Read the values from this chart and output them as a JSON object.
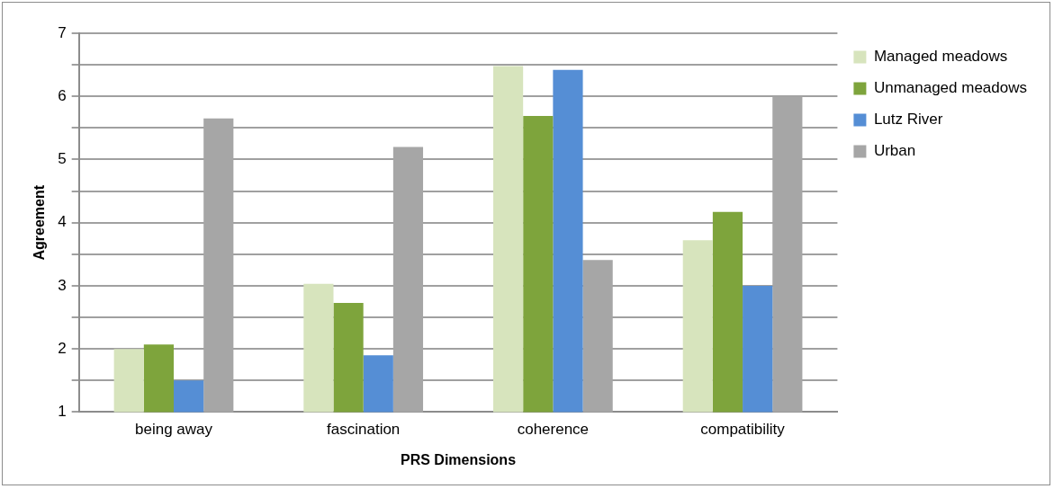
{
  "chart_data": {
    "type": "bar",
    "xlabel": "PRS Dimensions",
    "ylabel": "Agreement",
    "categories": [
      "being away",
      "fascination",
      "coherence",
      "compatibility"
    ],
    "series": [
      {
        "name": "Managed meadows",
        "color": "#d7e4bd",
        "values": [
          2.0,
          3.03,
          6.48,
          3.72
        ]
      },
      {
        "name": "Unmanaged meadows",
        "color": "#7ea43c",
        "values": [
          2.07,
          2.73,
          5.69,
          4.17
        ]
      },
      {
        "name": "Lutz River",
        "color": "#558ed5",
        "values": [
          1.5,
          1.9,
          6.42,
          3.0
        ]
      },
      {
        "name": "Urban",
        "color": "#a6a6a6",
        "values": [
          5.65,
          5.2,
          3.41,
          6.0
        ]
      }
    ],
    "ylim": [
      1,
      7
    ],
    "yticks": [
      1,
      {
        "value": 1.5,
        "label": null
      },
      2,
      {
        "value": 2.5,
        "label": null
      },
      3,
      {
        "value": 3.5,
        "label": null
      },
      4,
      {
        "value": 4.5,
        "label": null
      },
      5,
      {
        "value": 5.5,
        "label": null
      },
      6,
      {
        "value": 6.5,
        "label": null
      },
      7
    ],
    "grid": "y",
    "legend": "right"
  }
}
